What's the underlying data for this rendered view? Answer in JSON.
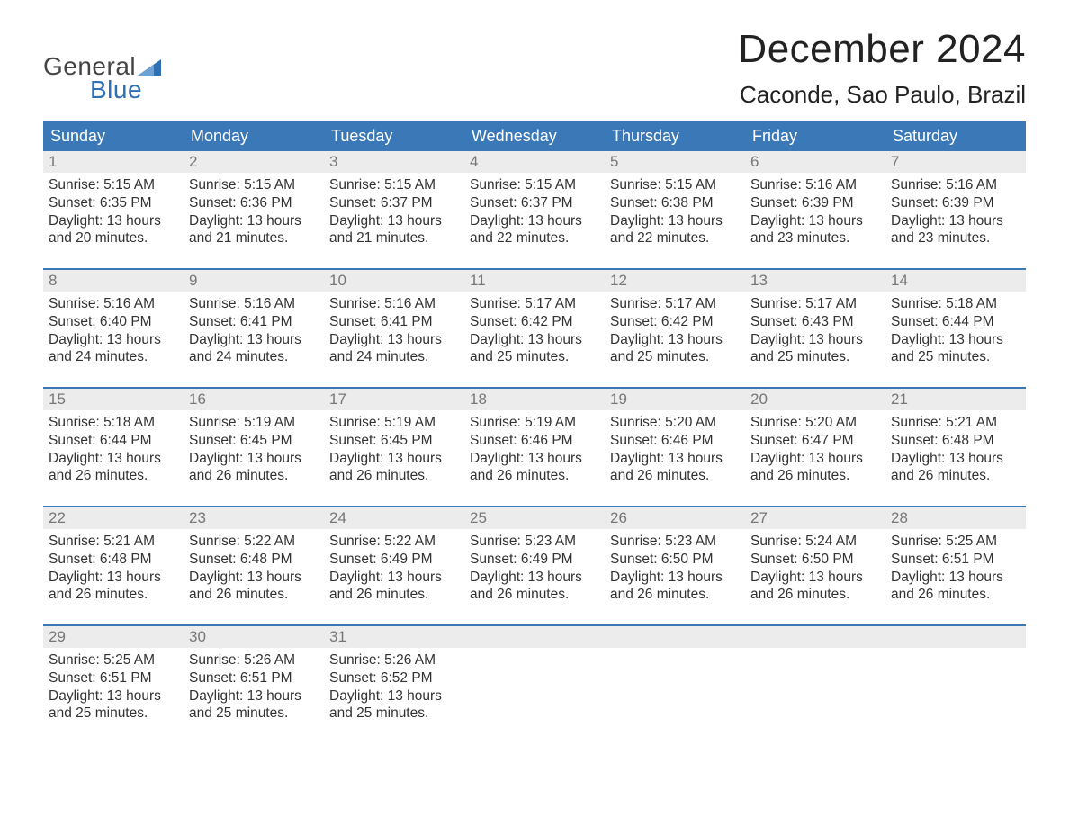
{
  "brand": {
    "top": "General",
    "bottom": "Blue",
    "top_color": "#444444",
    "bottom_color": "#2f6fb3",
    "flag_color": "#2f6fb3"
  },
  "title": "December 2024",
  "location": "Caconde, Sao Paulo, Brazil",
  "colors": {
    "header_bg": "#3b78b8",
    "header_text": "#ffffff",
    "week_border": "#3b78b8",
    "daynum_bg": "#ececec",
    "daynum_text": "#777777",
    "body_text": "#333333",
    "background": "#ffffff"
  },
  "weekdays": [
    "Sunday",
    "Monday",
    "Tuesday",
    "Wednesday",
    "Thursday",
    "Friday",
    "Saturday"
  ],
  "weeks": [
    [
      {
        "num": "1",
        "sunrise": "Sunrise: 5:15 AM",
        "sunset": "Sunset: 6:35 PM",
        "d1": "Daylight: 13 hours",
        "d2": "and 20 minutes."
      },
      {
        "num": "2",
        "sunrise": "Sunrise: 5:15 AM",
        "sunset": "Sunset: 6:36 PM",
        "d1": "Daylight: 13 hours",
        "d2": "and 21 minutes."
      },
      {
        "num": "3",
        "sunrise": "Sunrise: 5:15 AM",
        "sunset": "Sunset: 6:37 PM",
        "d1": "Daylight: 13 hours",
        "d2": "and 21 minutes."
      },
      {
        "num": "4",
        "sunrise": "Sunrise: 5:15 AM",
        "sunset": "Sunset: 6:37 PM",
        "d1": "Daylight: 13 hours",
        "d2": "and 22 minutes."
      },
      {
        "num": "5",
        "sunrise": "Sunrise: 5:15 AM",
        "sunset": "Sunset: 6:38 PM",
        "d1": "Daylight: 13 hours",
        "d2": "and 22 minutes."
      },
      {
        "num": "6",
        "sunrise": "Sunrise: 5:16 AM",
        "sunset": "Sunset: 6:39 PM",
        "d1": "Daylight: 13 hours",
        "d2": "and 23 minutes."
      },
      {
        "num": "7",
        "sunrise": "Sunrise: 5:16 AM",
        "sunset": "Sunset: 6:39 PM",
        "d1": "Daylight: 13 hours",
        "d2": "and 23 minutes."
      }
    ],
    [
      {
        "num": "8",
        "sunrise": "Sunrise: 5:16 AM",
        "sunset": "Sunset: 6:40 PM",
        "d1": "Daylight: 13 hours",
        "d2": "and 24 minutes."
      },
      {
        "num": "9",
        "sunrise": "Sunrise: 5:16 AM",
        "sunset": "Sunset: 6:41 PM",
        "d1": "Daylight: 13 hours",
        "d2": "and 24 minutes."
      },
      {
        "num": "10",
        "sunrise": "Sunrise: 5:16 AM",
        "sunset": "Sunset: 6:41 PM",
        "d1": "Daylight: 13 hours",
        "d2": "and 24 minutes."
      },
      {
        "num": "11",
        "sunrise": "Sunrise: 5:17 AM",
        "sunset": "Sunset: 6:42 PM",
        "d1": "Daylight: 13 hours",
        "d2": "and 25 minutes."
      },
      {
        "num": "12",
        "sunrise": "Sunrise: 5:17 AM",
        "sunset": "Sunset: 6:42 PM",
        "d1": "Daylight: 13 hours",
        "d2": "and 25 minutes."
      },
      {
        "num": "13",
        "sunrise": "Sunrise: 5:17 AM",
        "sunset": "Sunset: 6:43 PM",
        "d1": "Daylight: 13 hours",
        "d2": "and 25 minutes."
      },
      {
        "num": "14",
        "sunrise": "Sunrise: 5:18 AM",
        "sunset": "Sunset: 6:44 PM",
        "d1": "Daylight: 13 hours",
        "d2": "and 25 minutes."
      }
    ],
    [
      {
        "num": "15",
        "sunrise": "Sunrise: 5:18 AM",
        "sunset": "Sunset: 6:44 PM",
        "d1": "Daylight: 13 hours",
        "d2": "and 26 minutes."
      },
      {
        "num": "16",
        "sunrise": "Sunrise: 5:19 AM",
        "sunset": "Sunset: 6:45 PM",
        "d1": "Daylight: 13 hours",
        "d2": "and 26 minutes."
      },
      {
        "num": "17",
        "sunrise": "Sunrise: 5:19 AM",
        "sunset": "Sunset: 6:45 PM",
        "d1": "Daylight: 13 hours",
        "d2": "and 26 minutes."
      },
      {
        "num": "18",
        "sunrise": "Sunrise: 5:19 AM",
        "sunset": "Sunset: 6:46 PM",
        "d1": "Daylight: 13 hours",
        "d2": "and 26 minutes."
      },
      {
        "num": "19",
        "sunrise": "Sunrise: 5:20 AM",
        "sunset": "Sunset: 6:46 PM",
        "d1": "Daylight: 13 hours",
        "d2": "and 26 minutes."
      },
      {
        "num": "20",
        "sunrise": "Sunrise: 5:20 AM",
        "sunset": "Sunset: 6:47 PM",
        "d1": "Daylight: 13 hours",
        "d2": "and 26 minutes."
      },
      {
        "num": "21",
        "sunrise": "Sunrise: 5:21 AM",
        "sunset": "Sunset: 6:48 PM",
        "d1": "Daylight: 13 hours",
        "d2": "and 26 minutes."
      }
    ],
    [
      {
        "num": "22",
        "sunrise": "Sunrise: 5:21 AM",
        "sunset": "Sunset: 6:48 PM",
        "d1": "Daylight: 13 hours",
        "d2": "and 26 minutes."
      },
      {
        "num": "23",
        "sunrise": "Sunrise: 5:22 AM",
        "sunset": "Sunset: 6:48 PM",
        "d1": "Daylight: 13 hours",
        "d2": "and 26 minutes."
      },
      {
        "num": "24",
        "sunrise": "Sunrise: 5:22 AM",
        "sunset": "Sunset: 6:49 PM",
        "d1": "Daylight: 13 hours",
        "d2": "and 26 minutes."
      },
      {
        "num": "25",
        "sunrise": "Sunrise: 5:23 AM",
        "sunset": "Sunset: 6:49 PM",
        "d1": "Daylight: 13 hours",
        "d2": "and 26 minutes."
      },
      {
        "num": "26",
        "sunrise": "Sunrise: 5:23 AM",
        "sunset": "Sunset: 6:50 PM",
        "d1": "Daylight: 13 hours",
        "d2": "and 26 minutes."
      },
      {
        "num": "27",
        "sunrise": "Sunrise: 5:24 AM",
        "sunset": "Sunset: 6:50 PM",
        "d1": "Daylight: 13 hours",
        "d2": "and 26 minutes."
      },
      {
        "num": "28",
        "sunrise": "Sunrise: 5:25 AM",
        "sunset": "Sunset: 6:51 PM",
        "d1": "Daylight: 13 hours",
        "d2": "and 26 minutes."
      }
    ],
    [
      {
        "num": "29",
        "sunrise": "Sunrise: 5:25 AM",
        "sunset": "Sunset: 6:51 PM",
        "d1": "Daylight: 13 hours",
        "d2": "and 25 minutes."
      },
      {
        "num": "30",
        "sunrise": "Sunrise: 5:26 AM",
        "sunset": "Sunset: 6:51 PM",
        "d1": "Daylight: 13 hours",
        "d2": "and 25 minutes."
      },
      {
        "num": "31",
        "sunrise": "Sunrise: 5:26 AM",
        "sunset": "Sunset: 6:52 PM",
        "d1": "Daylight: 13 hours",
        "d2": "and 25 minutes."
      },
      {
        "empty": true
      },
      {
        "empty": true
      },
      {
        "empty": true
      },
      {
        "empty": true
      }
    ]
  ]
}
